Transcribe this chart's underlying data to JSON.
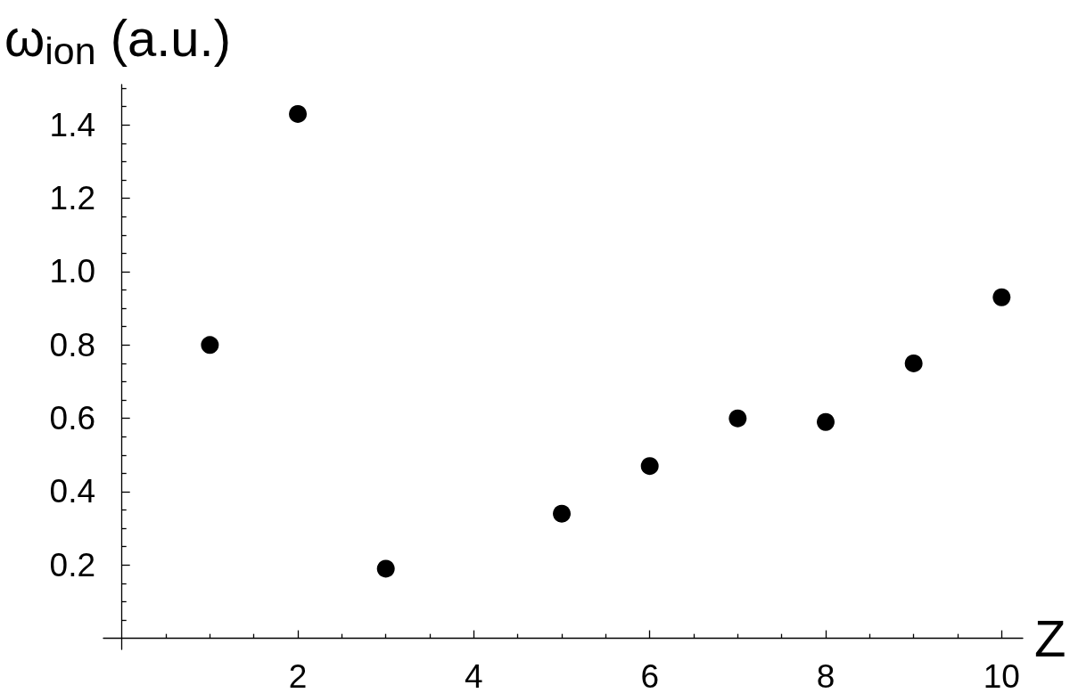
{
  "chart_data": {
    "type": "scatter",
    "xlabel": "Z",
    "ylabel": "ω$_{ion}$ (a.u.)",
    "x": [
      1,
      2,
      3,
      5,
      6,
      7,
      8,
      9,
      10
    ],
    "values": [
      0.8,
      1.43,
      0.19,
      0.34,
      0.47,
      0.6,
      0.59,
      0.75,
      0.93
    ],
    "color": "#000000",
    "marker": "circle",
    "xlim": [
      -0.21,
      10.24
    ],
    "ylim": [
      -0.03,
      1.51
    ],
    "xticks": [
      {
        "value": 0.5,
        "label": null
      },
      {
        "value": 1,
        "label": null
      },
      {
        "value": 1.5,
        "label": null
      },
      2,
      {
        "value": 2.5,
        "label": null
      },
      {
        "value": 3,
        "label": null
      },
      {
        "value": 3.5,
        "label": null
      },
      4,
      {
        "value": 4.5,
        "label": null
      },
      {
        "value": 5,
        "label": null
      },
      {
        "value": 5.5,
        "label": null
      },
      6,
      {
        "value": 6.5,
        "label": null
      },
      {
        "value": 7,
        "label": null
      },
      {
        "value": 7.5,
        "label": null
      },
      8,
      {
        "value": 8.5,
        "label": null
      },
      {
        "value": 9,
        "label": null
      },
      {
        "value": 9.5,
        "label": null
      },
      10
    ],
    "yticks": [
      {
        "value": 0.05,
        "label": null
      },
      {
        "value": 0.1,
        "label": null
      },
      {
        "value": 0.15,
        "label": null
      },
      0.2,
      {
        "value": 0.25,
        "label": null
      },
      {
        "value": 0.3,
        "label": null
      },
      {
        "value": 0.35,
        "label": null
      },
      0.4,
      {
        "value": 0.45,
        "label": null
      },
      {
        "value": 0.5,
        "label": null
      },
      {
        "value": 0.55,
        "label": null
      },
      0.6,
      {
        "value": 0.65,
        "label": null
      },
      {
        "value": 0.7,
        "label": null
      },
      {
        "value": 0.75,
        "label": null
      },
      0.8,
      {
        "value": 0.85,
        "label": null
      },
      {
        "value": 0.9,
        "label": null
      },
      {
        "value": 0.95,
        "label": null
      },
      {
        "value": 1,
        "label": "1.0"
      },
      {
        "value": 1.05,
        "label": null
      },
      {
        "value": 1.1,
        "label": null
      },
      {
        "value": 1.15,
        "label": null
      },
      1.2,
      {
        "value": 1.25,
        "label": null
      },
      {
        "value": 1.3,
        "label": null
      },
      {
        "value": 1.35,
        "label": null
      },
      1.4,
      {
        "value": 1.45,
        "label": null
      },
      {
        "value": 1.5,
        "label": null
      }
    ],
    "grid": false
  }
}
